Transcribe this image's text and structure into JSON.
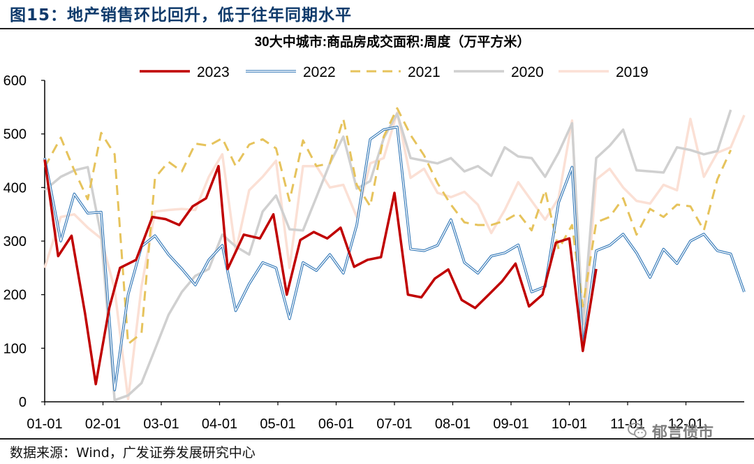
{
  "figure": {
    "title": "图15：地产销售环比回升，低于往年同期水平",
    "source": "数据来源：Wind，广发证券发展研究中心",
    "watermark": "郁言债市",
    "watermark_icon": "wechat-icon"
  },
  "chart_data": {
    "type": "line",
    "title": "30大中城市:商品房成交面积:周度（万平方米）",
    "xlabel": "",
    "ylabel": "",
    "ylim": [
      0,
      600
    ],
    "yticks": [
      "0",
      "100",
      "200",
      "300",
      "400",
      "500",
      "600"
    ],
    "xticks": [
      "01-01",
      "02-01",
      "03-01",
      "04-01",
      "05-01",
      "06-01",
      "07-01",
      "08-01",
      "09-01",
      "10-01",
      "11-01",
      "12-01"
    ],
    "grid": false,
    "legend_position": "top",
    "series": [
      {
        "name": "2023",
        "color": "#c00000",
        "dash": "solid",
        "width": 3.5,
        "points": [
          [
            0,
            452
          ],
          [
            2.5,
            272
          ],
          [
            5,
            310
          ],
          [
            7.5,
            165
          ],
          [
            9.5,
            33
          ],
          [
            12,
            175
          ],
          [
            14,
            250
          ],
          [
            17,
            265
          ],
          [
            20,
            345
          ],
          [
            22.5,
            341
          ],
          [
            25,
            330
          ],
          [
            27.5,
            365
          ],
          [
            30,
            380
          ],
          [
            32.3,
            440
          ],
          [
            34,
            248
          ],
          [
            37,
            312
          ],
          [
            40,
            305
          ],
          [
            42.5,
            350
          ],
          [
            45,
            200
          ],
          [
            47.5,
            302
          ],
          [
            50,
            317
          ],
          [
            52.5,
            305
          ],
          [
            55,
            325
          ],
          [
            57.5,
            252
          ],
          [
            60,
            265
          ],
          [
            62.5,
            270
          ],
          [
            65,
            390
          ],
          [
            67.5,
            200
          ],
          [
            70,
            195
          ],
          [
            72.5,
            230
          ],
          [
            75,
            247
          ],
          [
            77.5,
            190
          ],
          [
            80,
            175
          ],
          [
            82.5,
            200
          ],
          [
            85,
            225
          ],
          [
            87.5,
            258
          ],
          [
            90,
            178
          ],
          [
            92.5,
            200
          ],
          [
            95,
            297
          ],
          [
            97.5,
            305
          ],
          [
            100,
            95
          ],
          [
            102.5,
            248
          ]
        ]
      },
      {
        "name": "2022",
        "color": "#2e75b6",
        "dash": "double",
        "width": 3.6,
        "points": [
          [
            0,
            455
          ],
          [
            3,
            300
          ],
          [
            5.5,
            388
          ],
          [
            8,
            352
          ],
          [
            10.5,
            354
          ],
          [
            13,
            22
          ],
          [
            15.5,
            200
          ],
          [
            18,
            290
          ],
          [
            20.5,
            310
          ],
          [
            23,
            275
          ],
          [
            25.5,
            248
          ],
          [
            28,
            218
          ],
          [
            30.5,
            265
          ],
          [
            33,
            292
          ],
          [
            35.5,
            170
          ],
          [
            38,
            220
          ],
          [
            40.5,
            260
          ],
          [
            43,
            250
          ],
          [
            45.5,
            155
          ],
          [
            48,
            260
          ],
          [
            50.5,
            245
          ],
          [
            53,
            275
          ],
          [
            55.5,
            240
          ],
          [
            58,
            330
          ],
          [
            60.5,
            490
          ],
          [
            63,
            508
          ],
          [
            65.5,
            513
          ],
          [
            68,
            285
          ],
          [
            70.5,
            282
          ],
          [
            73,
            292
          ],
          [
            75.5,
            340
          ],
          [
            78,
            260
          ],
          [
            80.5,
            240
          ],
          [
            83,
            272
          ],
          [
            85.5,
            278
          ],
          [
            88,
            293
          ],
          [
            90.5,
            205
          ],
          [
            93,
            215
          ],
          [
            95.5,
            372
          ],
          [
            98,
            438
          ],
          [
            100,
            100
          ],
          [
            102.5,
            282
          ],
          [
            105,
            292
          ],
          [
            107.5,
            313
          ],
          [
            110,
            278
          ],
          [
            112.5,
            232
          ],
          [
            115,
            285
          ],
          [
            117.5,
            258
          ],
          [
            120,
            300
          ],
          [
            122.5,
            313
          ],
          [
            125,
            282
          ],
          [
            127.5,
            276
          ],
          [
            130,
            205
          ]
        ]
      },
      {
        "name": "2021",
        "color": "#e6c35c",
        "dash": "dashed",
        "width": 3,
        "points": [
          [
            0,
            438
          ],
          [
            3,
            493
          ],
          [
            5.5,
            432
          ],
          [
            8,
            378
          ],
          [
            10.5,
            502
          ],
          [
            13,
            462
          ],
          [
            15.5,
            108
          ],
          [
            18,
            128
          ],
          [
            20.5,
            418
          ],
          [
            23,
            448
          ],
          [
            25.5,
            430
          ],
          [
            28,
            482
          ],
          [
            30.5,
            478
          ],
          [
            33,
            492
          ],
          [
            35.5,
            440
          ],
          [
            38,
            480
          ],
          [
            40.5,
            490
          ],
          [
            43,
            473
          ],
          [
            45.5,
            375
          ],
          [
            48,
            488
          ],
          [
            50.5,
            440
          ],
          [
            53,
            445
          ],
          [
            55.5,
            528
          ],
          [
            58,
            405
          ],
          [
            60.5,
            365
          ],
          [
            63,
            495
          ],
          [
            65.5,
            548
          ],
          [
            68,
            498
          ],
          [
            70.5,
            460
          ],
          [
            73,
            408
          ],
          [
            75.5,
            368
          ],
          [
            78,
            335
          ],
          [
            80.5,
            330
          ],
          [
            83,
            330
          ],
          [
            85.5,
            338
          ],
          [
            88,
            352
          ],
          [
            90.5,
            320
          ],
          [
            93,
            395
          ],
          [
            95.5,
            285
          ],
          [
            98,
            330
          ],
          [
            100,
            178
          ],
          [
            102.5,
            335
          ],
          [
            105,
            345
          ],
          [
            107.5,
            380
          ],
          [
            110,
            312
          ],
          [
            112.5,
            360
          ],
          [
            115,
            345
          ],
          [
            117.5,
            368
          ],
          [
            120,
            365
          ],
          [
            122.5,
            320
          ],
          [
            125,
            415
          ],
          [
            127.5,
            470
          ]
        ]
      },
      {
        "name": "2020",
        "color": "#d0d0d0",
        "dash": "solid",
        "width": 3.5,
        "points": [
          [
            0,
            395
          ],
          [
            3,
            420
          ],
          [
            5.5,
            432
          ],
          [
            8,
            438
          ],
          [
            10.5,
            310
          ],
          [
            13,
            3
          ],
          [
            15.5,
            12
          ],
          [
            18,
            35
          ],
          [
            20.5,
            98
          ],
          [
            23,
            162
          ],
          [
            25.5,
            205
          ],
          [
            28,
            235
          ],
          [
            30.5,
            248
          ],
          [
            33,
            312
          ],
          [
            35.5,
            290
          ],
          [
            38,
            275
          ],
          [
            40.5,
            355
          ],
          [
            43,
            385
          ],
          [
            45.5,
            322
          ],
          [
            48,
            320
          ],
          [
            50.5,
            382
          ],
          [
            53,
            445
          ],
          [
            55.5,
            495
          ],
          [
            58,
            398
          ],
          [
            60.5,
            412
          ],
          [
            63,
            492
          ],
          [
            65.5,
            538
          ],
          [
            68,
            455
          ],
          [
            70.5,
            450
          ],
          [
            73,
            445
          ],
          [
            75.5,
            455
          ],
          [
            78,
            430
          ],
          [
            80.5,
            440
          ],
          [
            83,
            422
          ],
          [
            85.5,
            475
          ],
          [
            88,
            458
          ],
          [
            90.5,
            455
          ],
          [
            93,
            420
          ],
          [
            95.5,
            465
          ],
          [
            98,
            520
          ],
          [
            100,
            145
          ],
          [
            102.5,
            455
          ],
          [
            105,
            478
          ],
          [
            107.5,
            508
          ],
          [
            110,
            432
          ],
          [
            112.5,
            430
          ],
          [
            115,
            428
          ],
          [
            117.5,
            475
          ],
          [
            120,
            470
          ],
          [
            122.5,
            462
          ],
          [
            125,
            468
          ],
          [
            127.5,
            545
          ]
        ]
      },
      {
        "name": "2019",
        "color": "#fbe0d5",
        "dash": "solid",
        "width": 3.5,
        "points": [
          [
            0,
            250
          ],
          [
            3,
            345
          ],
          [
            5.5,
            350
          ],
          [
            8,
            325
          ],
          [
            10.5,
            305
          ],
          [
            13,
            210
          ],
          [
            15.5,
            5
          ],
          [
            18,
            215
          ],
          [
            20.5,
            355
          ],
          [
            23,
            358
          ],
          [
            25.5,
            360
          ],
          [
            28,
            358
          ],
          [
            30.5,
            420
          ],
          [
            33,
            462
          ],
          [
            35.5,
            280
          ],
          [
            38,
            395
          ],
          [
            40.5,
            420
          ],
          [
            43,
            450
          ],
          [
            45.5,
            250
          ],
          [
            48,
            440
          ],
          [
            50.5,
            440
          ],
          [
            53,
            400
          ],
          [
            55.5,
            405
          ],
          [
            58,
            345
          ],
          [
            60.5,
            445
          ],
          [
            63,
            455
          ],
          [
            65.5,
            540
          ],
          [
            68,
            418
          ],
          [
            70.5,
            435
          ],
          [
            73,
            390
          ],
          [
            75.5,
            382
          ],
          [
            78,
            392
          ],
          [
            80.5,
            368
          ],
          [
            83,
            315
          ],
          [
            85.5,
            358
          ],
          [
            88,
            410
          ],
          [
            90.5,
            375
          ],
          [
            93,
            340
          ],
          [
            95.5,
            380
          ],
          [
            98,
            525
          ],
          [
            100,
            110
          ],
          [
            102.5,
            415
          ],
          [
            105,
            435
          ],
          [
            107.5,
            400
          ],
          [
            110,
            375
          ],
          [
            112.5,
            370
          ],
          [
            115,
            405
          ],
          [
            117.5,
            395
          ],
          [
            120,
            528
          ],
          [
            122.5,
            420
          ],
          [
            125,
            465
          ],
          [
            127.5,
            475
          ],
          [
            130,
            535
          ]
        ]
      }
    ]
  }
}
